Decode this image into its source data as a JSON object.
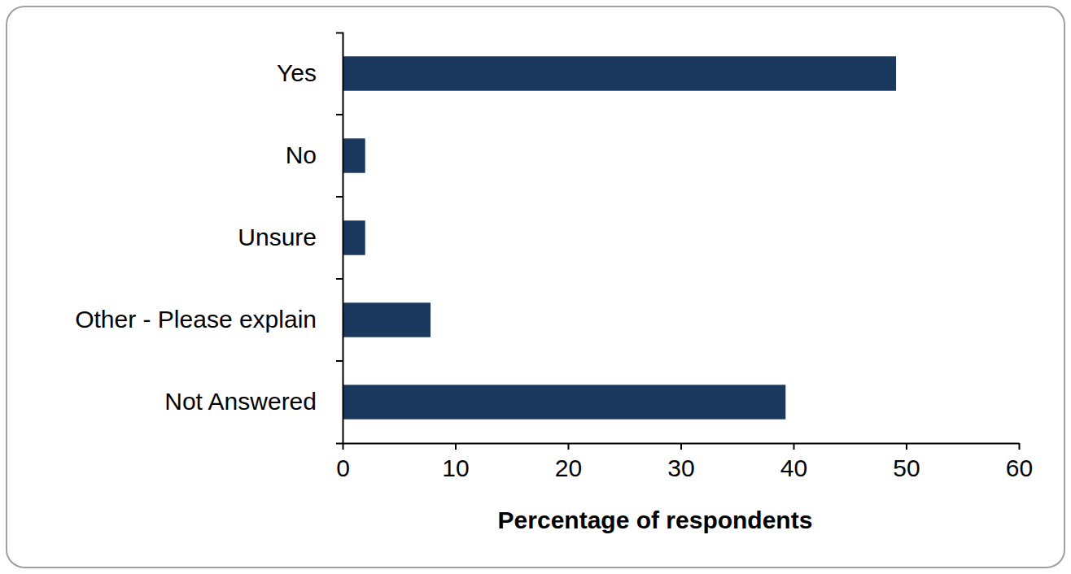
{
  "chart_data": {
    "type": "bar",
    "orientation": "horizontal",
    "categories": [
      "Yes",
      "No",
      "Unsure",
      "Other - Please explain",
      "Not Answered"
    ],
    "values": [
      49.1,
      2,
      2,
      7.8,
      39.3
    ],
    "color": "#1b385e",
    "xlabel": "Percentage of respondents",
    "xlim": [
      0,
      60
    ],
    "xticks": [
      0,
      10,
      20,
      30,
      40,
      50,
      60
    ],
    "grid": false
  }
}
